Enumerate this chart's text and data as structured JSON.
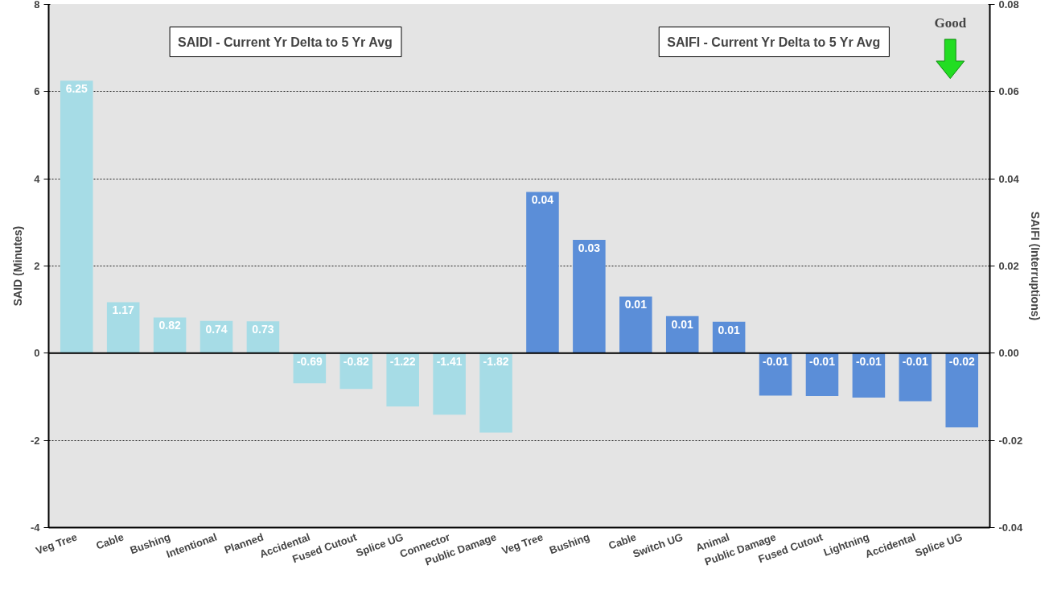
{
  "chart_data": {
    "type": "bar",
    "ylabel": "SAID (Minutes)",
    "y2label": "SAIFI (Interruptions)",
    "categories": [
      "Veg Tree",
      "Cable",
      "Bushing",
      "Intentional",
      "Planned",
      "Accidental",
      "Fused Cutout",
      "Splice UG",
      "Connector",
      "Public Damage",
      "Veg Tree",
      "Bushing",
      "Cable",
      "Switch UG",
      "Animal",
      "Public Damage",
      "Fused Cutout",
      "Lightning",
      "Accidental",
      "Splice UG"
    ],
    "series": [
      {
        "color": "#a6dce6",
        "values": [
          6.25,
          1.17,
          0.82,
          0.74,
          0.73,
          -0.69,
          -0.82,
          -1.22,
          -1.41,
          -1.82,
          null,
          null,
          null,
          null,
          null,
          null,
          null,
          null,
          null,
          null
        ],
        "value_labels": [
          "6.25",
          "1.17",
          "0.82",
          "0.74",
          "0.73",
          "-0.69",
          "-0.82",
          "-1.22",
          "-1.41",
          "-1.82",
          null,
          null,
          null,
          null,
          null,
          null,
          null,
          null,
          null,
          null
        ]
      },
      {
        "color": "#5b8ed8",
        "axis": "y2",
        "values": [
          null,
          null,
          null,
          null,
          null,
          null,
          null,
          null,
          null,
          null,
          0.037,
          0.026,
          0.013,
          0.0085,
          0.0072,
          -0.0097,
          -0.0098,
          -0.0102,
          -0.011,
          -0.017
        ],
        "value_labels": [
          null,
          null,
          null,
          null,
          null,
          null,
          null,
          null,
          null,
          null,
          "0.04",
          "0.03",
          "0.01",
          "0.01",
          "0.01",
          "-0.01",
          "-0.01",
          "-0.01",
          "-0.01",
          "-0.02"
        ]
      }
    ],
    "ylim": [
      -4,
      8
    ],
    "yticks": [
      -4,
      -2,
      0,
      2,
      4,
      6,
      8
    ],
    "y2lim": [
      -0.04,
      0.08
    ],
    "y2ticks": [
      {
        "value": -0.04,
        "label": "-0.04"
      },
      {
        "value": -0.02,
        "label": "-0.02"
      },
      {
        "value": 0,
        "label": "0.00"
      },
      {
        "value": 0.02,
        "label": "0.02"
      },
      {
        "value": 0.04,
        "label": "0.04"
      },
      {
        "value": 0.06,
        "label": "0.06"
      },
      {
        "value": 0.08,
        "label": "0.08"
      }
    ],
    "grid": "y",
    "annotations": [
      "SAIDI - Current Yr Delta to 5 Yr Avg",
      "SAIFI - Current Yr Delta to 5 Yr Avg",
      "Good"
    ]
  }
}
